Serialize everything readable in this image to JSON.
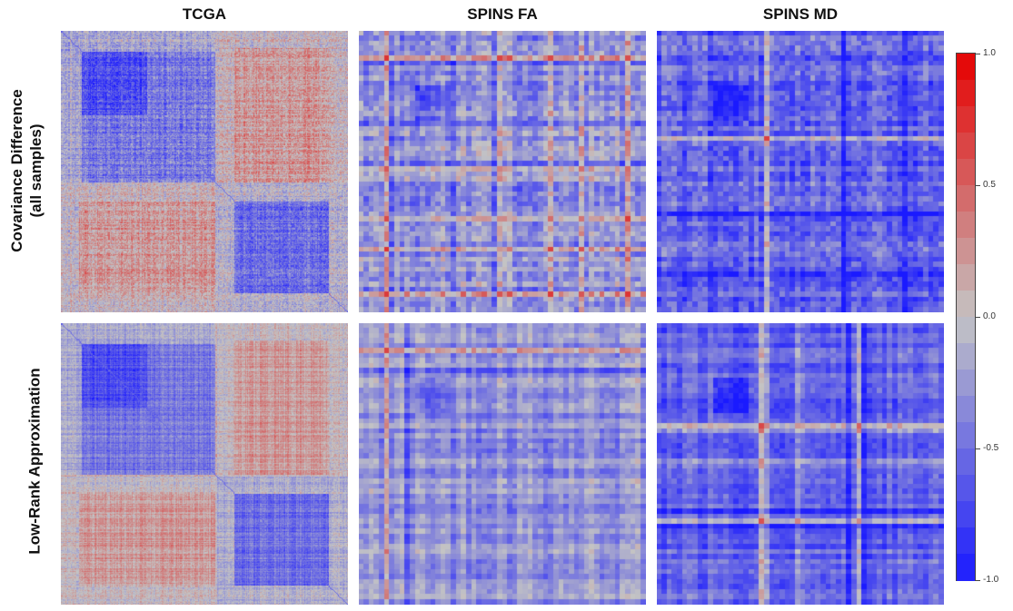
{
  "figure": {
    "column_titles": [
      "TCGA",
      "SPINS FA",
      "SPINS MD"
    ],
    "row_labels": [
      [
        "Covariance Difference",
        "(all samples)"
      ],
      [
        "Low-Rank Approximation"
      ]
    ]
  },
  "chart_data": {
    "type": "heatmap",
    "layout": "2x3 grid of heatmaps",
    "columns": [
      "TCGA",
      "SPINS FA",
      "SPINS MD"
    ],
    "rows": [
      "Covariance Difference (all samples)",
      "Low-Rank Approximation"
    ],
    "value_range": [
      -1.0,
      1.0
    ],
    "colorscale": {
      "low": "#1a1aff",
      "mid": "#c4c4c4",
      "high": "#e60000",
      "bands": 20
    },
    "colorbar": {
      "ticks": [
        1.0,
        0.5,
        0.0,
        -0.5,
        -1.0
      ],
      "tick_labels": [
        "1.0",
        "0.5",
        "0.0",
        "-0.5",
        "-1.0"
      ],
      "placement": "right"
    },
    "panels": [
      {
        "row": 0,
        "column": "TCGA",
        "pattern": "two negative diagonal blocks, positive off-diagonal blocks",
        "approx_mean": -0.1
      },
      {
        "row": 0,
        "column": "SPINS FA",
        "pattern": "mostly mild negative with scattered positive stripes",
        "approx_mean": -0.25
      },
      {
        "row": 0,
        "column": "SPINS MD",
        "pattern": "predominantly negative",
        "approx_mean": -0.55
      },
      {
        "row": 1,
        "column": "TCGA",
        "pattern": "two negative diagonal blocks, positive off-diagonal blocks",
        "approx_mean": -0.1
      },
      {
        "row": 1,
        "column": "SPINS FA",
        "pattern": "mostly mild negative with scattered positive stripes",
        "approx_mean": -0.25
      },
      {
        "row": 1,
        "column": "SPINS MD",
        "pattern": "predominantly negative",
        "approx_mean": -0.55
      }
    ]
  }
}
